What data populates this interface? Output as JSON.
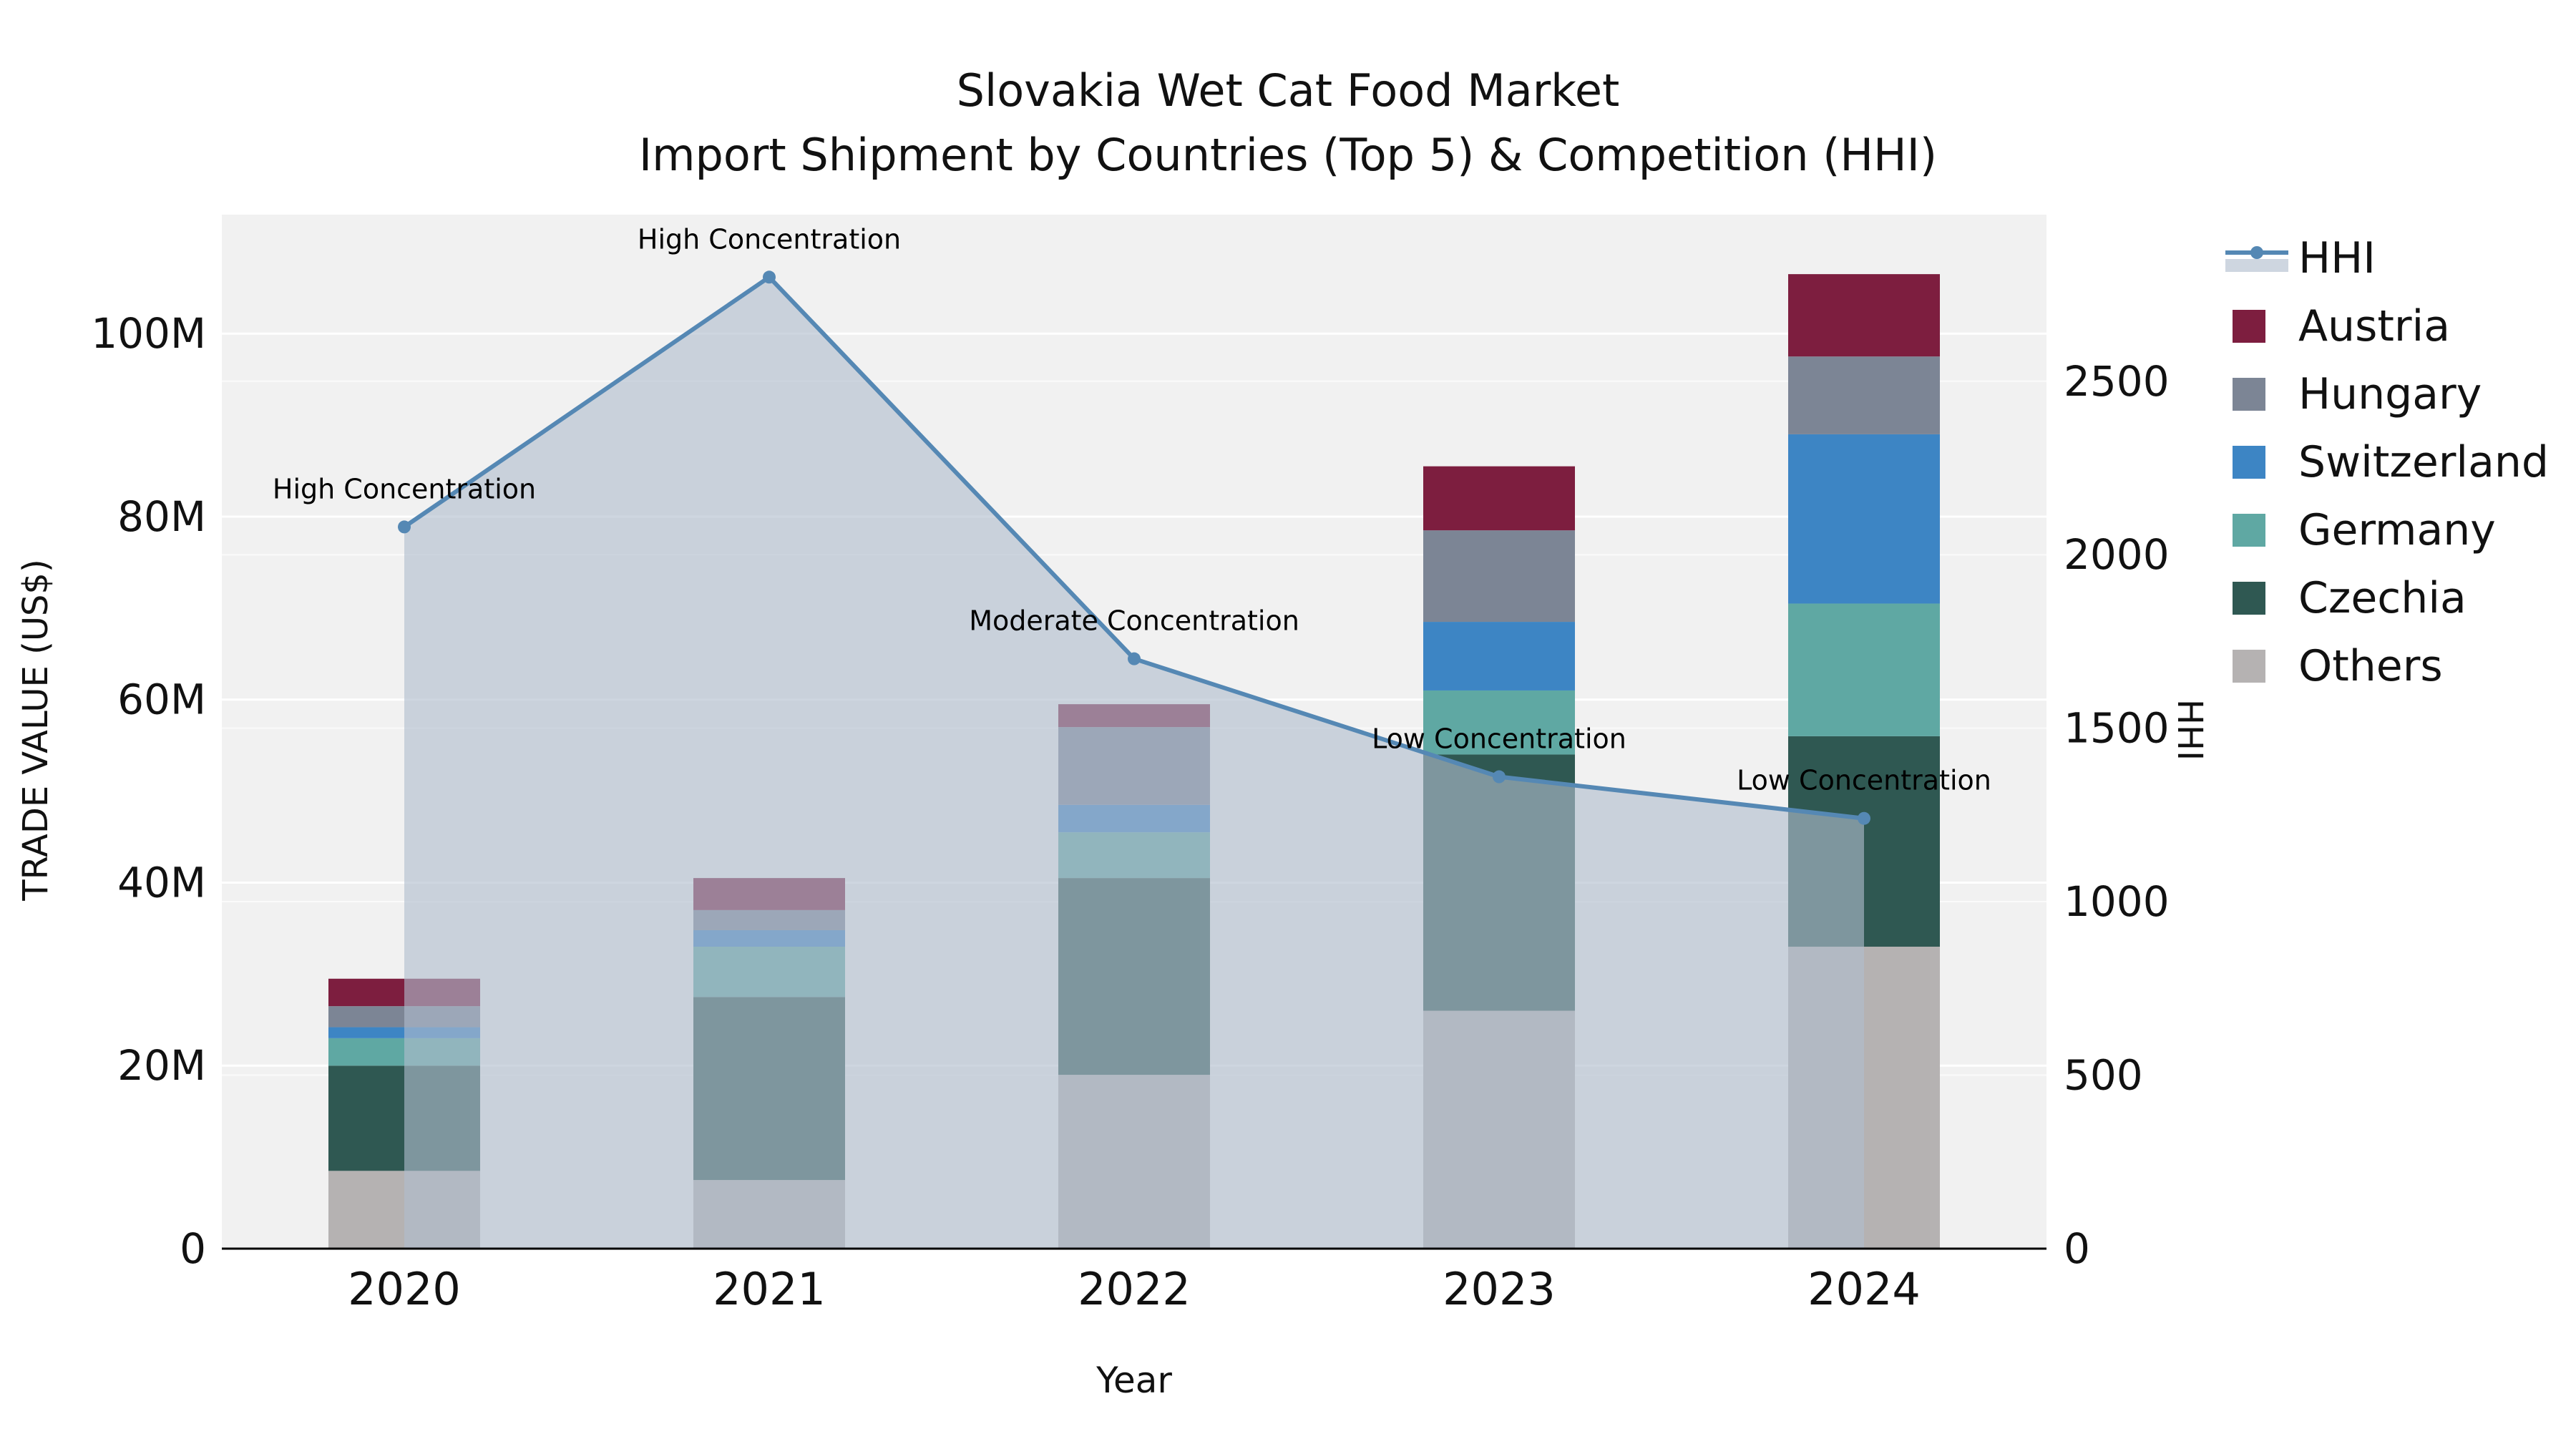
{
  "title": "Slovakia Wet Cat Food Market",
  "subtitle": "Import Shipment by Countries (Top 5) & Competition (HHI)",
  "axes": {
    "x_label": "Year",
    "y_left_label": "TRADE VALUE (US$)",
    "y_right_label": "HHI",
    "y_left_ticks": [
      "0",
      "20M",
      "40M",
      "60M",
      "80M",
      "100M"
    ],
    "y_left_tick_values": [
      0,
      20,
      40,
      60,
      80,
      100
    ],
    "y_right_ticks": [
      "0",
      "500",
      "1000",
      "1500",
      "2000",
      "2500"
    ],
    "y_right_tick_values": [
      0,
      500,
      1000,
      1500,
      2000,
      2500
    ],
    "ylim_left": [
      0,
      113
    ],
    "ylim_right": [
      0,
      2980
    ],
    "grid": true
  },
  "chart_data": {
    "type": "bar",
    "subtype": "stacked-bars-with-line-area",
    "categories": [
      "2020",
      "2021",
      "2022",
      "2023",
      "2024"
    ],
    "y_left_unit": "M US$",
    "bar_series": [
      {
        "name": "Others",
        "color": "#b5b2b2",
        "values": [
          8.5,
          7.5,
          19.0,
          26.0,
          33.0
        ]
      },
      {
        "name": "Czechia",
        "color": "#2f5852",
        "values": [
          11.5,
          20.0,
          21.5,
          28.0,
          23.0
        ]
      },
      {
        "name": "Germany",
        "color": "#5fa8a3",
        "values": [
          3.0,
          5.5,
          5.0,
          7.0,
          14.5
        ]
      },
      {
        "name": "Switzerland",
        "color": "#3d85c4",
        "values": [
          1.2,
          1.8,
          3.0,
          7.5,
          18.5
        ]
      },
      {
        "name": "Hungary",
        "color": "#7c8595",
        "values": [
          2.3,
          2.2,
          8.5,
          10.0,
          8.5
        ]
      },
      {
        "name": "Austria",
        "color": "#7d1e3f",
        "values": [
          3.0,
          3.5,
          2.5,
          7.0,
          9.0
        ]
      }
    ],
    "bar_totals": [
      29.5,
      40.5,
      59.5,
      85.5,
      106.5
    ],
    "line_series": {
      "name": "HHI",
      "color": "#5588b4",
      "area_color": "rgba(176,189,205,0.62)",
      "values": [
        2080,
        2800,
        1700,
        1360,
        1240
      ]
    },
    "annotations": [
      "High Concentration",
      "High Concentration",
      "Moderate Concentration",
      "Low Concentration",
      "Low Concentration"
    ],
    "legend_position": "right-outside"
  },
  "legend": {
    "items": [
      {
        "label": "HHI",
        "type": "line",
        "color": "#5588b4"
      },
      {
        "label": "Austria",
        "type": "swatch",
        "color": "#7d1e3f"
      },
      {
        "label": "Hungary",
        "type": "swatch",
        "color": "#7c8595"
      },
      {
        "label": "Switzerland",
        "type": "swatch",
        "color": "#3d85c4"
      },
      {
        "label": "Germany",
        "type": "swatch",
        "color": "#5fa8a3"
      },
      {
        "label": "Czechia",
        "type": "swatch",
        "color": "#2f5852"
      },
      {
        "label": "Others",
        "type": "swatch",
        "color": "#b5b2b2"
      }
    ]
  },
  "colors": {
    "plot_background": "#f1f1f1",
    "gridline": "#ffffff",
    "axis_spine": "#000000",
    "text": "#111111"
  }
}
